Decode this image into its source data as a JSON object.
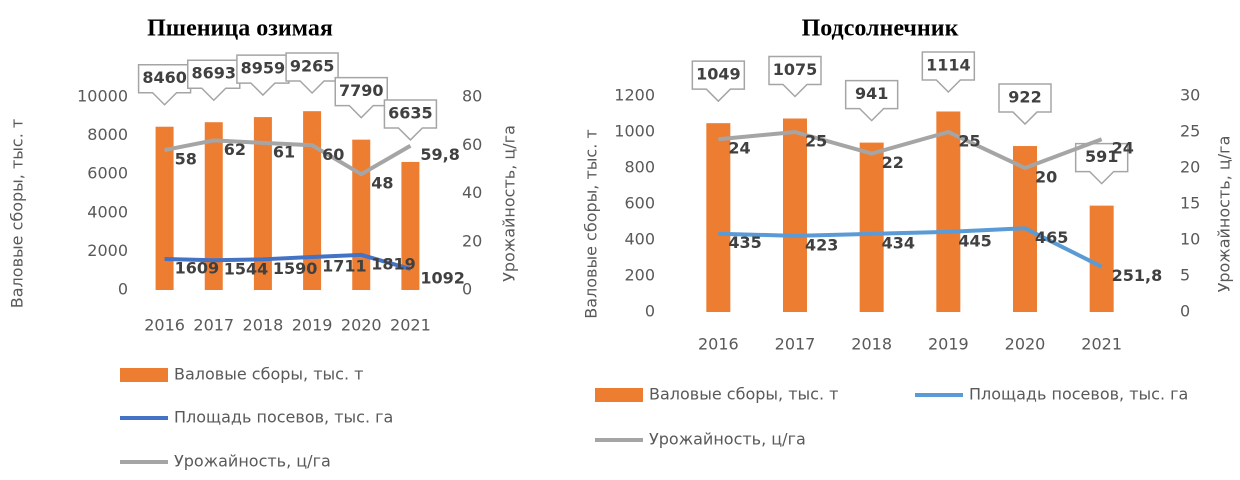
{
  "chart_data": [
    {
      "type": "combo",
      "title": "Пшеница озимая",
      "ylabel": "Валовые сборы, тыс. т",
      "y2label": "Урожайность, ц/га",
      "categories": [
        "2016",
        "2017",
        "2018",
        "2019",
        "2020",
        "2021"
      ],
      "ylim": [
        0,
        10000
      ],
      "yticks": [
        0,
        2000,
        4000,
        6000,
        8000,
        10000
      ],
      "y2lim": [
        0,
        80
      ],
      "y2ticks": [
        0,
        20,
        40,
        60,
        80
      ],
      "series": [
        {
          "name": "Валовые сборы, тыс. т",
          "type": "bar",
          "color": "#ed7d31",
          "values": [
            8460,
            8693,
            8959,
            9265,
            7790,
            6635
          ]
        },
        {
          "name": "Площадь посевов, тыс. га",
          "type": "line",
          "color": "#4472c4",
          "values": [
            1609,
            1544,
            1590,
            1711,
            1819,
            1092
          ]
        },
        {
          "name": "Урожайность, ц/га",
          "type": "line",
          "axis": "y2",
          "color": "#a5a5a5",
          "values": [
            58,
            62,
            61,
            60,
            48,
            59.8
          ],
          "value_labels": [
            "58",
            "62",
            "61",
            "60",
            "48",
            "59,8"
          ]
        }
      ]
    },
    {
      "type": "combo",
      "title": "Подсолнечник",
      "ylabel": "Валовые сборы, тыс. т",
      "y2label": "Урожайность, ц/га",
      "categories": [
        "2016",
        "2017",
        "2018",
        "2019",
        "2020",
        "2021"
      ],
      "ylim": [
        0,
        1200
      ],
      "yticks": [
        0,
        200,
        400,
        600,
        800,
        1000,
        1200
      ],
      "y2lim": [
        0,
        30
      ],
      "y2ticks": [
        0,
        5,
        10,
        15,
        20,
        25,
        30
      ],
      "series": [
        {
          "name": "Валовые сборы, тыс. т",
          "type": "bar",
          "color": "#ed7d31",
          "values": [
            1049,
            1075,
            941,
            1114,
            922,
            591
          ]
        },
        {
          "name": "Площадь посевов, тыс. га",
          "type": "line",
          "color": "#5b9bd5",
          "values": [
            435,
            423,
            434,
            445,
            465,
            251.8
          ],
          "value_labels": [
            "435",
            "423",
            "434",
            "445",
            "465",
            "251,8"
          ]
        },
        {
          "name": "Урожайность, ц/га",
          "type": "line",
          "axis": "y2",
          "color": "#a5a5a5",
          "values": [
            24,
            25,
            22,
            25,
            20,
            24
          ]
        }
      ]
    }
  ]
}
